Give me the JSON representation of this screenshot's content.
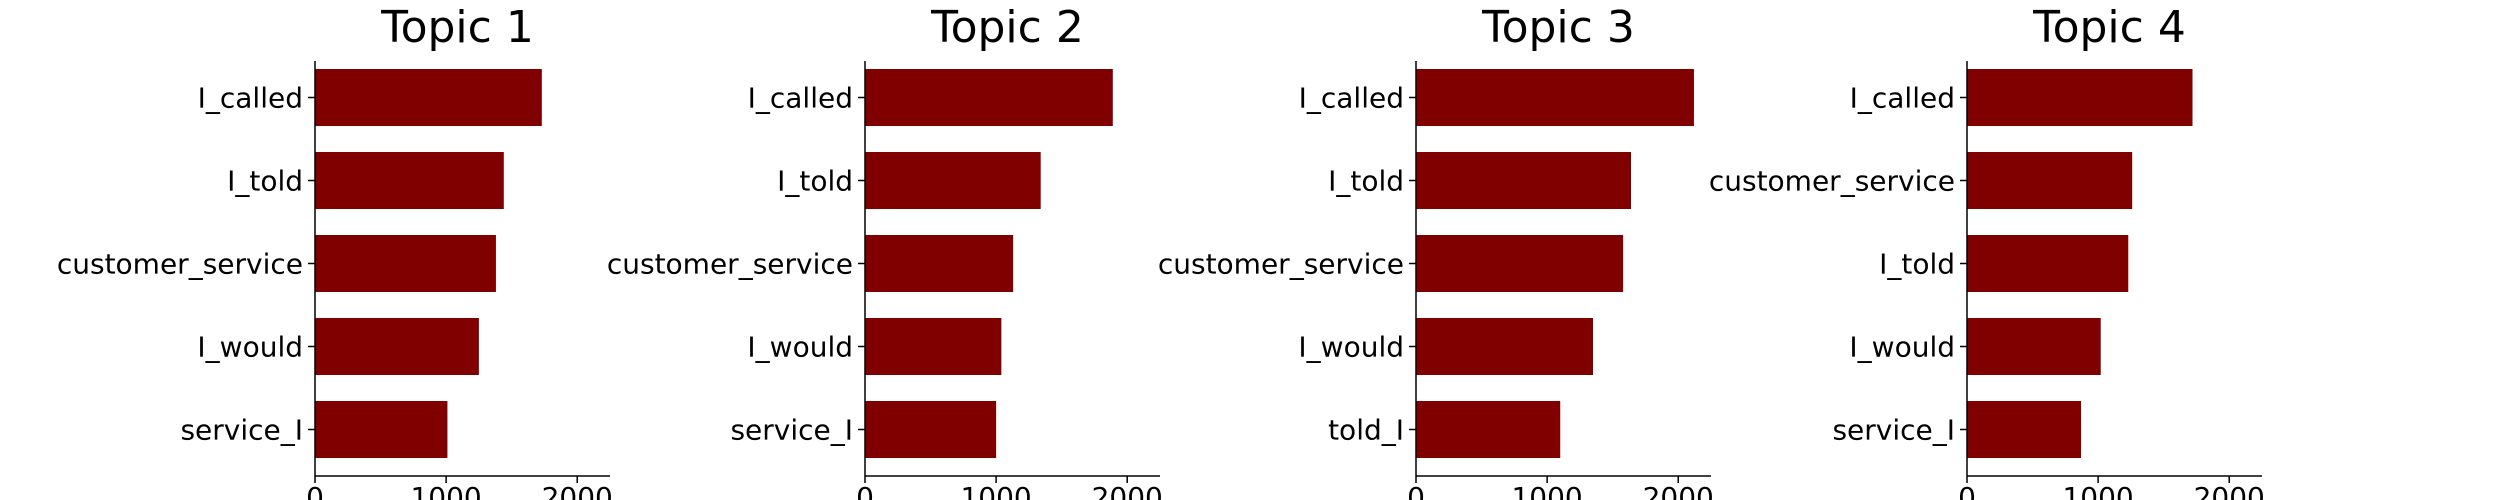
{
  "chart_data": [
    {
      "type": "bar",
      "orientation": "horizontal",
      "title": "Topic 1",
      "categories": [
        "I_called",
        "I_told",
        "customer_service",
        "I_would",
        "service_I"
      ],
      "values": [
        1730,
        1440,
        1380,
        1250,
        1010
      ],
      "xlim": [
        0,
        2250
      ],
      "xticks": [
        0,
        1000,
        2000
      ],
      "xlabel": "",
      "ylabel": "",
      "bar_color": "#800000",
      "grid": false
    },
    {
      "type": "bar",
      "orientation": "horizontal",
      "title": "Topic 2",
      "categories": [
        "I_called",
        "I_told",
        "customer_service",
        "I_would",
        "service_I"
      ],
      "values": [
        1890,
        1340,
        1130,
        1040,
        1000
      ],
      "xlim": [
        0,
        2250
      ],
      "xticks": [
        0,
        1000,
        2000
      ],
      "xlabel": "",
      "ylabel": "",
      "bar_color": "#800000",
      "grid": false
    },
    {
      "type": "bar",
      "orientation": "horizontal",
      "title": "Topic 3",
      "categories": [
        "I_called",
        "I_told",
        "customer_service",
        "I_would",
        "told_I"
      ],
      "values": [
        2120,
        1640,
        1580,
        1350,
        1100
      ],
      "xlim": [
        0,
        2250
      ],
      "xticks": [
        0,
        1000,
        2000
      ],
      "xlabel": "",
      "ylabel": "",
      "bar_color": "#800000",
      "grid": false
    },
    {
      "type": "bar",
      "orientation": "horizontal",
      "title": "Topic 4",
      "categories": [
        "I_called",
        "customer_service",
        "I_told",
        "I_would",
        "service_I"
      ],
      "values": [
        1720,
        1260,
        1230,
        1020,
        870
      ],
      "xlim": [
        0,
        2250
      ],
      "xticks": [
        0,
        1000,
        2000
      ],
      "xlabel": "",
      "ylabel": "",
      "bar_color": "#800000",
      "grid": false
    }
  ]
}
